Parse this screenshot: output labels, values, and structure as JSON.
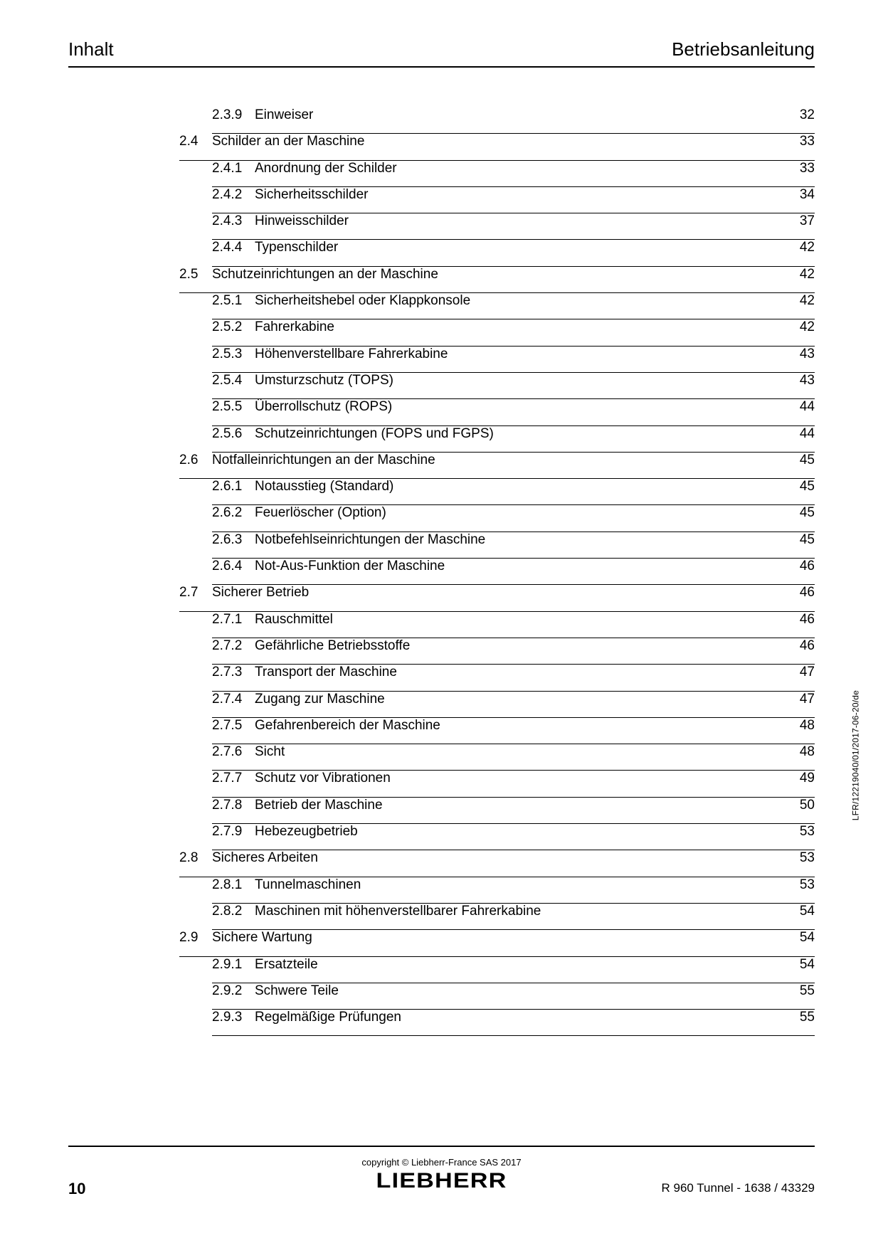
{
  "header": {
    "left": "Inhalt",
    "right": "Betriebsanleitung"
  },
  "toc": [
    {
      "type": "sub",
      "num": "2.3.9",
      "title": "Einweiser",
      "page": "32"
    },
    {
      "type": "section",
      "num": "2.4",
      "title": "Schilder an der Maschine",
      "page": "33"
    },
    {
      "type": "sub",
      "num": "2.4.1",
      "title": "Anordnung der Schilder",
      "page": "33"
    },
    {
      "type": "sub",
      "num": "2.4.2",
      "title": "Sicherheitsschilder",
      "page": "34"
    },
    {
      "type": "sub",
      "num": "2.4.3",
      "title": "Hinweisschilder",
      "page": "37"
    },
    {
      "type": "sub",
      "num": "2.4.4",
      "title": "Typenschilder",
      "page": "42"
    },
    {
      "type": "section",
      "num": "2.5",
      "title": "Schutzeinrichtungen an der Maschine",
      "page": "42"
    },
    {
      "type": "sub",
      "num": "2.5.1",
      "title": "Sicherheitshebel oder Klappkonsole",
      "page": "42"
    },
    {
      "type": "sub",
      "num": "2.5.2",
      "title": "Fahrerkabine",
      "page": "42"
    },
    {
      "type": "sub",
      "num": "2.5.3",
      "title": "Höhenverstellbare Fahrerkabine",
      "page": "43"
    },
    {
      "type": "sub",
      "num": "2.5.4",
      "title": "Umsturzschutz (TOPS)",
      "page": "43"
    },
    {
      "type": "sub",
      "num": "2.5.5",
      "title": "Überrollschutz (ROPS)",
      "page": "44"
    },
    {
      "type": "sub",
      "num": "2.5.6",
      "title": "Schutzeinrichtungen (FOPS und FGPS)",
      "page": "44"
    },
    {
      "type": "section",
      "num": "2.6",
      "title": "Notfalleinrichtungen an der Maschine",
      "page": "45"
    },
    {
      "type": "sub",
      "num": "2.6.1",
      "title": "Notausstieg (Standard)",
      "page": "45"
    },
    {
      "type": "sub",
      "num": "2.6.2",
      "title": "Feuerlöscher (Option)",
      "page": "45"
    },
    {
      "type": "sub",
      "num": "2.6.3",
      "title": "Notbefehlseinrichtungen der Maschine",
      "page": "45"
    },
    {
      "type": "sub",
      "num": "2.6.4",
      "title": "Not-Aus-Funktion der Maschine",
      "page": "46"
    },
    {
      "type": "section",
      "num": "2.7",
      "title": "Sicherer Betrieb",
      "page": "46"
    },
    {
      "type": "sub",
      "num": "2.7.1",
      "title": "Rauschmittel",
      "page": "46"
    },
    {
      "type": "sub",
      "num": "2.7.2",
      "title": "Gefährliche Betriebsstoffe",
      "page": "46"
    },
    {
      "type": "sub",
      "num": "2.7.3",
      "title": "Transport der Maschine",
      "page": "47"
    },
    {
      "type": "sub",
      "num": "2.7.4",
      "title": "Zugang zur Maschine",
      "page": "47"
    },
    {
      "type": "sub",
      "num": "2.7.5",
      "title": "Gefahrenbereich der Maschine",
      "page": "48"
    },
    {
      "type": "sub",
      "num": "2.7.6",
      "title": "Sicht",
      "page": "48"
    },
    {
      "type": "sub",
      "num": "2.7.7",
      "title": "Schutz vor Vibrationen",
      "page": "49"
    },
    {
      "type": "sub",
      "num": "2.7.8",
      "title": "Betrieb der Maschine",
      "page": "50"
    },
    {
      "type": "sub",
      "num": "2.7.9",
      "title": "Hebezeugbetrieb",
      "page": "53"
    },
    {
      "type": "section",
      "num": "2.8",
      "title": "Sicheres Arbeiten",
      "page": "53"
    },
    {
      "type": "sub",
      "num": "2.8.1",
      "title": "Tunnelmaschinen",
      "page": "53"
    },
    {
      "type": "sub",
      "num": "2.8.2",
      "title": "Maschinen mit höhenverstellbarer Fahrerkabine",
      "page": "54"
    },
    {
      "type": "section",
      "num": "2.9",
      "title": "Sichere Wartung",
      "page": "54"
    },
    {
      "type": "sub",
      "num": "2.9.1",
      "title": "Ersatzteile",
      "page": "54"
    },
    {
      "type": "sub",
      "num": "2.9.2",
      "title": "Schwere Teile",
      "page": "55"
    },
    {
      "type": "sub",
      "num": "2.9.3",
      "title": "Regelmäßige Prüfungen",
      "page": "55"
    }
  ],
  "side_text": "LFR/12219040/01/2017-06-20/de",
  "footer": {
    "copyright": "copyright © Liebherr-France SAS 2017",
    "brand": "LIEBHERR",
    "page_number": "10",
    "doc_ref": "R 960 Tunnel  - 1638 / 43329"
  }
}
